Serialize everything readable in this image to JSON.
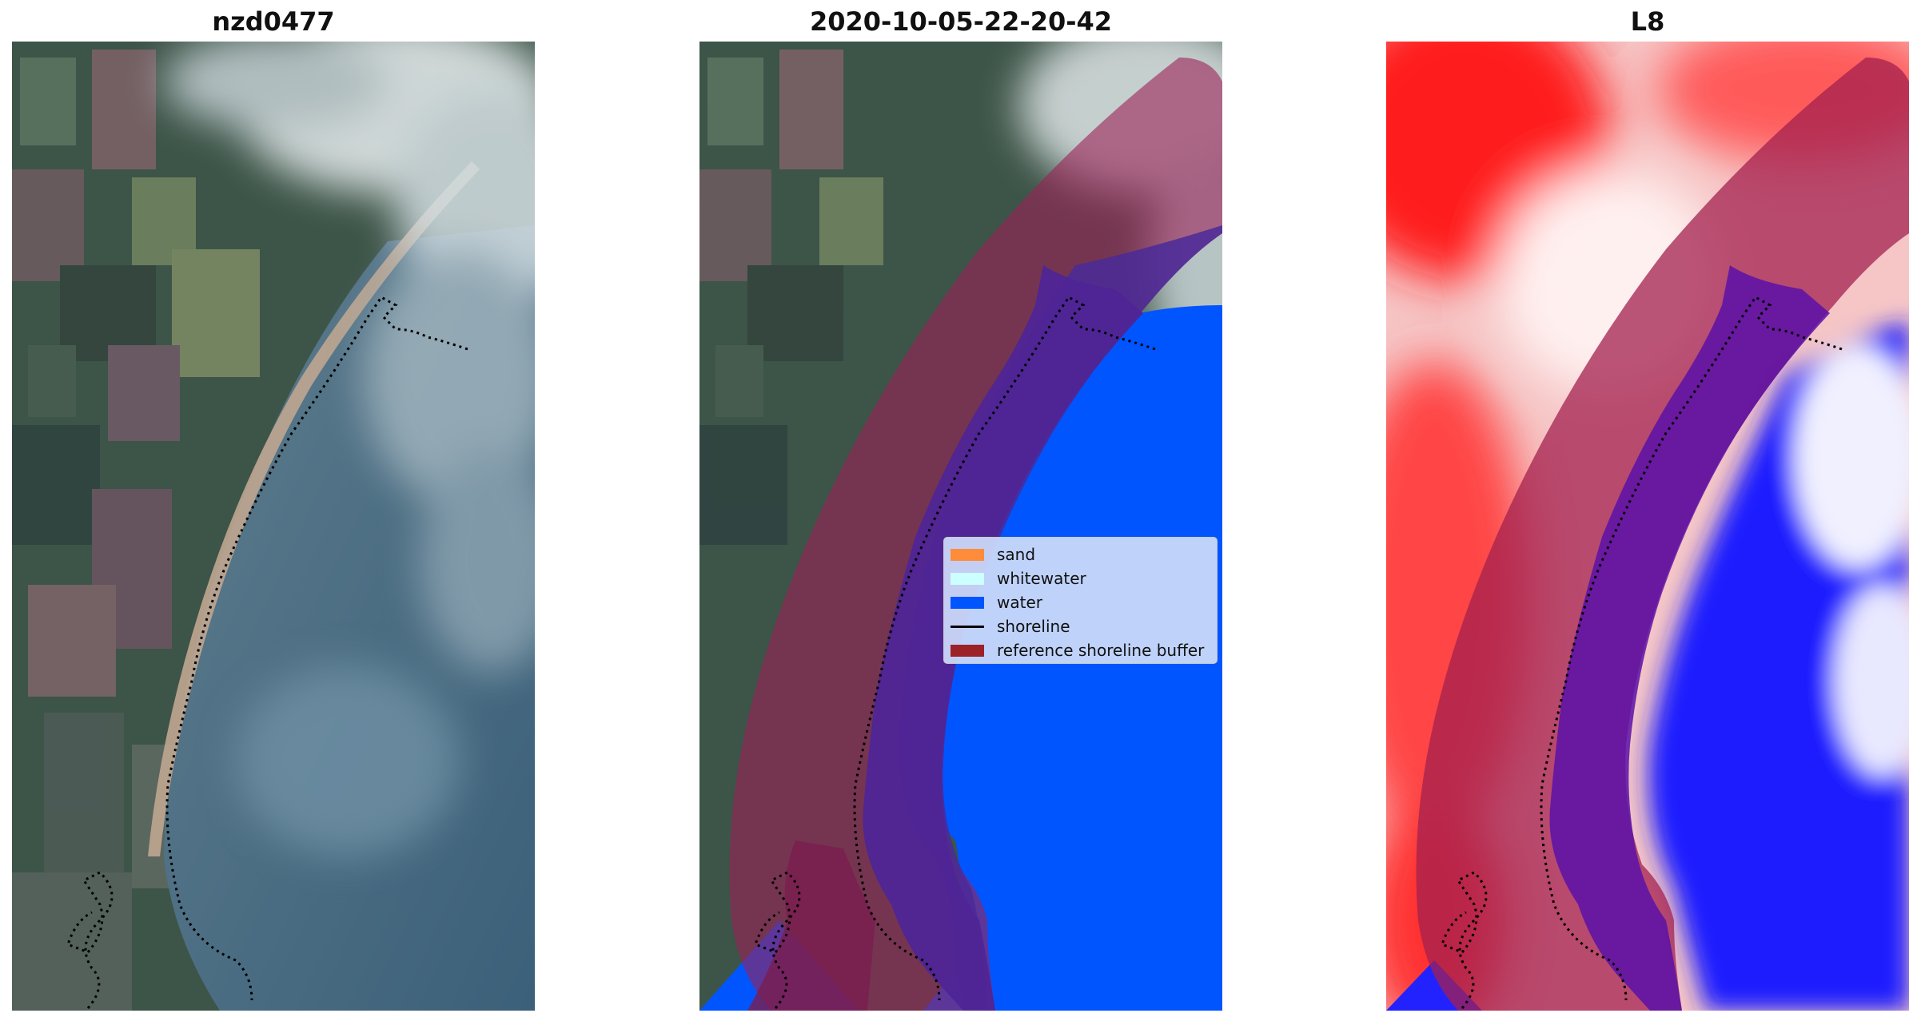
{
  "panels": [
    {
      "title": "nzd0477"
    },
    {
      "title": "2020-10-05-22-20-42"
    },
    {
      "title": "L8"
    }
  ],
  "legend": {
    "items": [
      {
        "label": "sand",
        "color": "#ff8c3a",
        "kind": "patch"
      },
      {
        "label": "whitewater",
        "color": "#ccffff",
        "kind": "patch"
      },
      {
        "label": "water",
        "color": "#0055ff",
        "kind": "patch"
      },
      {
        "label": "shoreline",
        "color": "#000000",
        "kind": "line"
      },
      {
        "label": "reference shoreline buffer",
        "color": "#9b2226",
        "kind": "patch"
      }
    ]
  },
  "colors": {
    "buffer": "#9b2226",
    "water": "#0055ff",
    "index_high": "#ff0000",
    "index_low": "#0000ff"
  }
}
